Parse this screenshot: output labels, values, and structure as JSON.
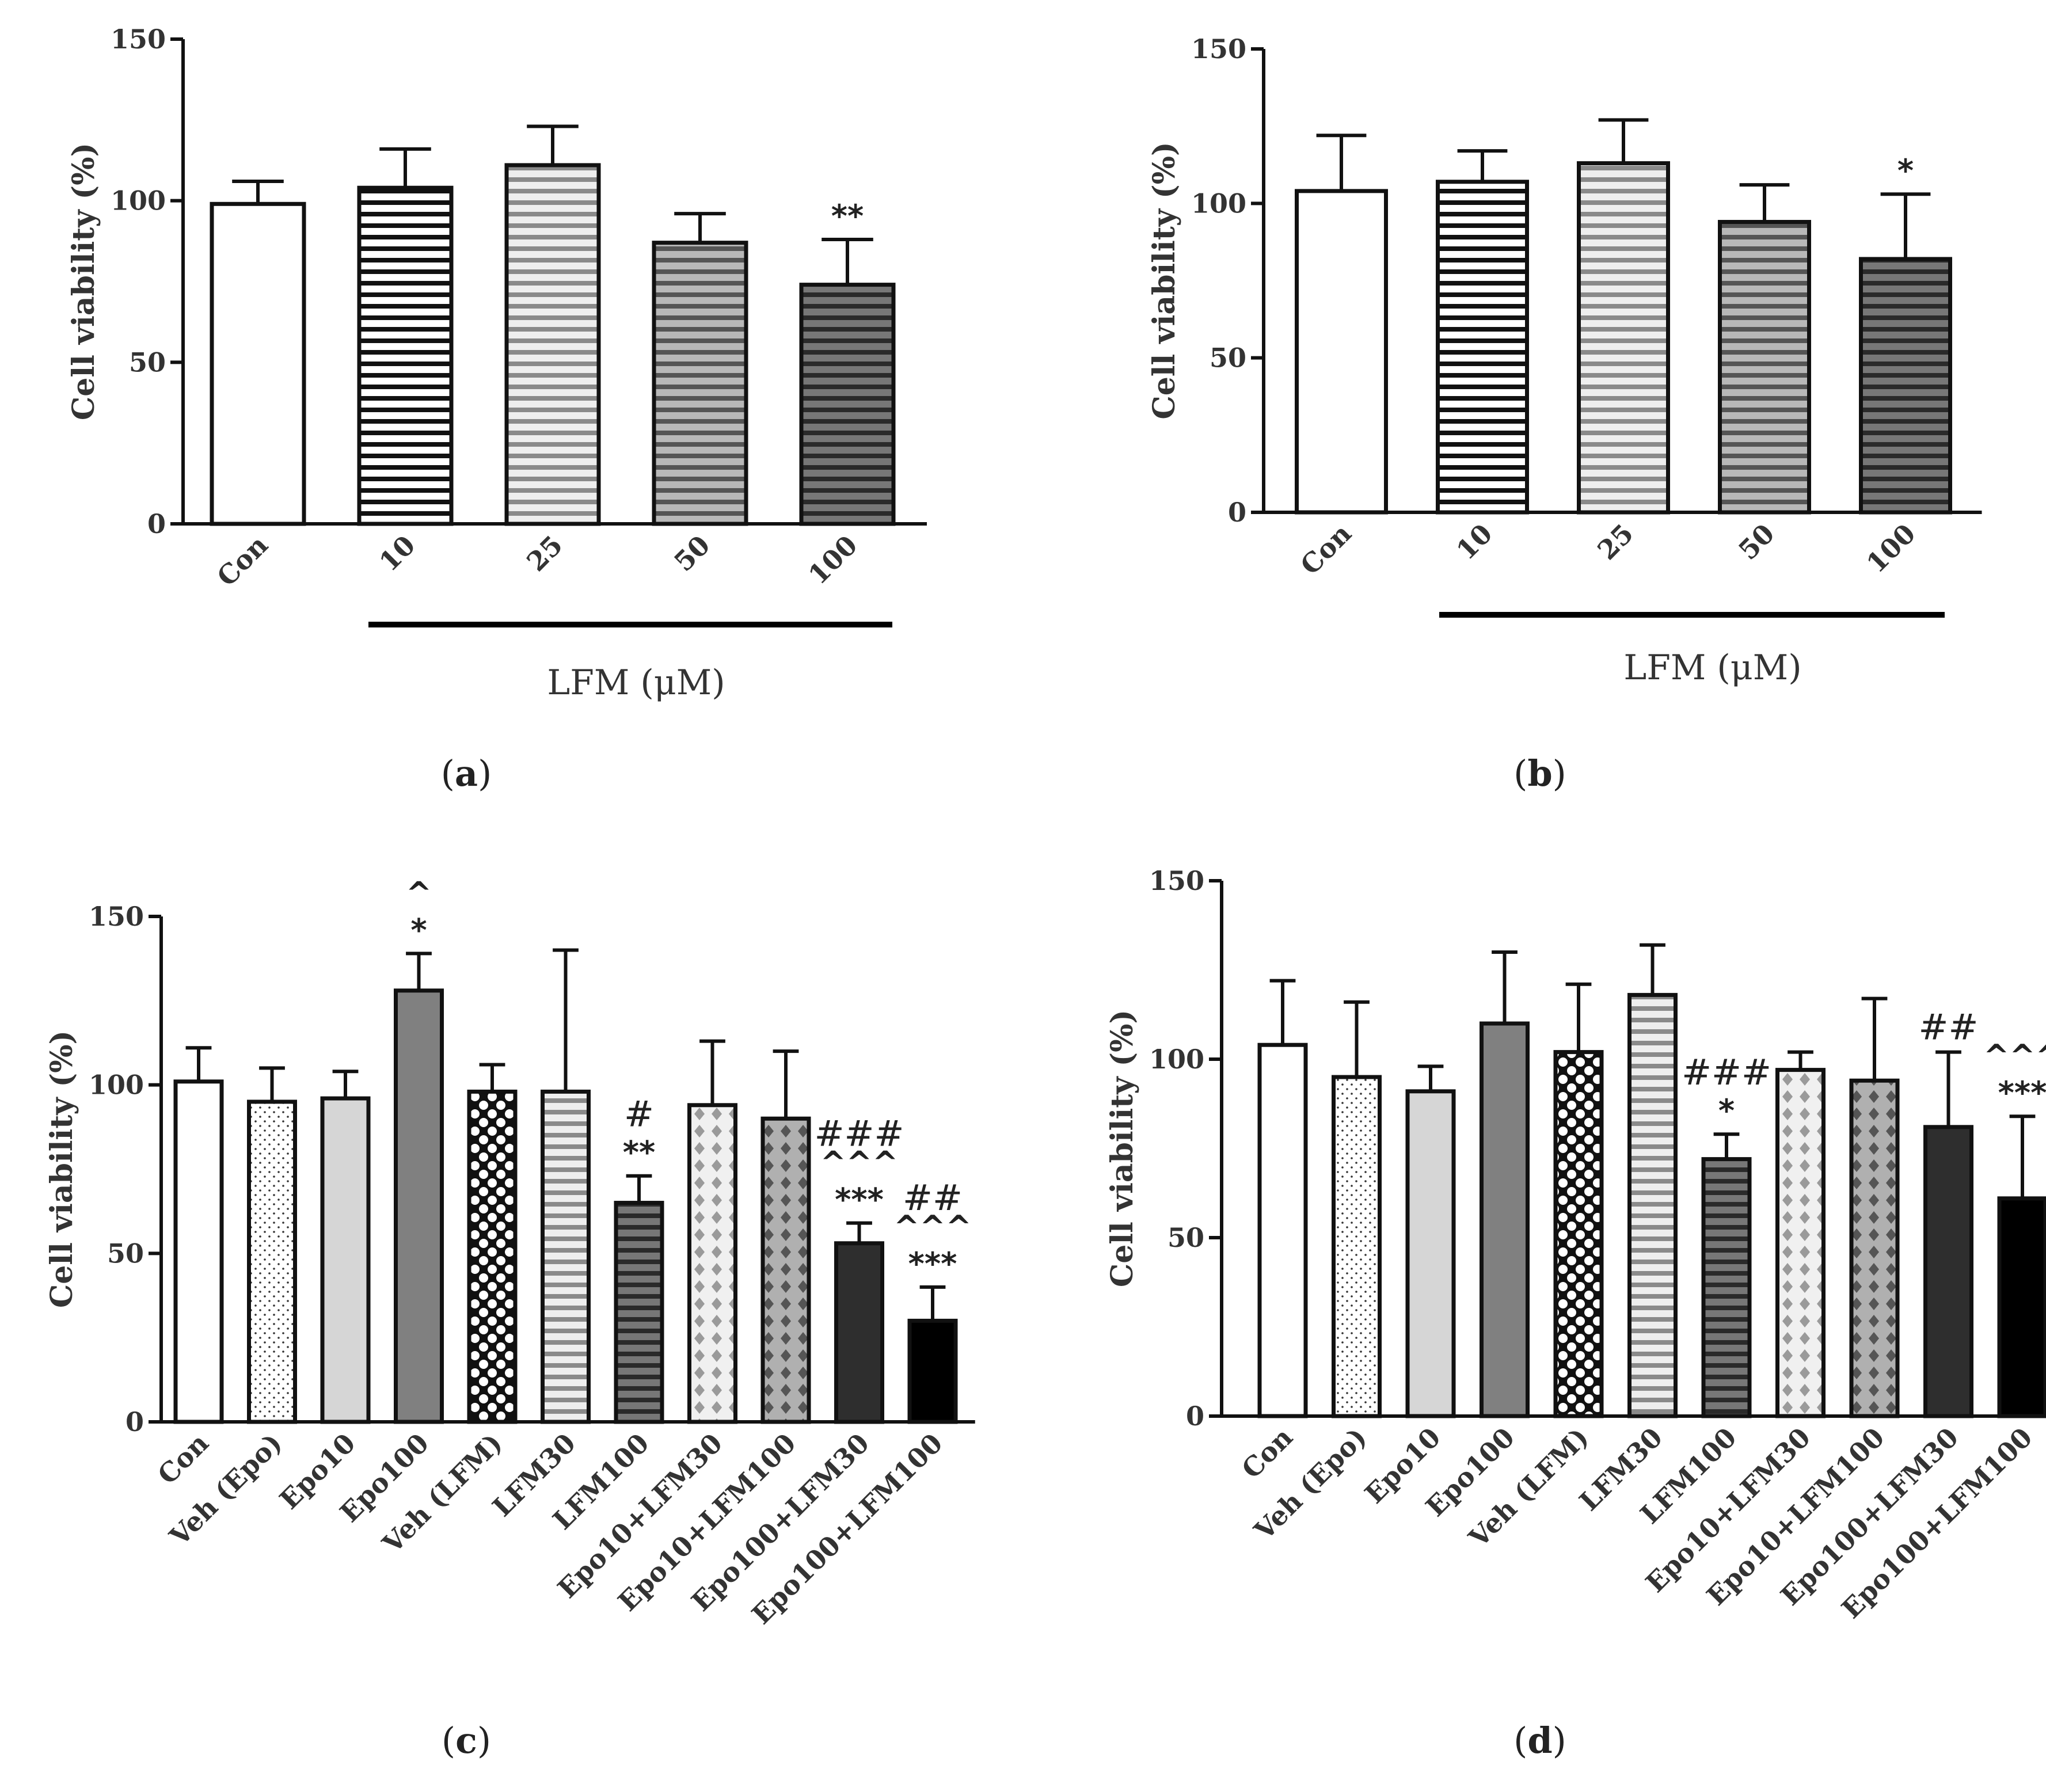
{
  "chart_data": [
    {
      "panel": "a",
      "type": "bar",
      "ylabel": "Cell viability (%)",
      "ylim": [
        0,
        150
      ],
      "yticks": [
        0,
        50,
        100,
        150
      ],
      "categories": [
        "Con",
        "10",
        "25",
        "50",
        "100"
      ],
      "values": [
        99,
        104,
        111,
        87,
        74
      ],
      "errors": [
        7,
        12,
        12,
        9,
        14
      ],
      "patterns": [
        "white",
        "stripe-white",
        "stripe-light",
        "stripe-mid",
        "stripe-dark"
      ],
      "annotations": [
        [],
        [],
        [],
        [],
        [
          "**"
        ]
      ],
      "group_label": "LFM (μM)",
      "group_start": 1,
      "panel_label": "a"
    },
    {
      "panel": "b",
      "type": "bar",
      "ylabel": "Cell viability (%)",
      "ylim": [
        0,
        150
      ],
      "yticks": [
        0,
        50,
        100,
        150
      ],
      "categories": [
        "Con",
        "10",
        "25",
        "50",
        "100"
      ],
      "values": [
        104,
        107,
        113,
        94,
        82
      ],
      "errors": [
        18,
        10,
        14,
        12,
        21
      ],
      "patterns": [
        "white",
        "stripe-white",
        "stripe-light",
        "stripe-mid",
        "stripe-dark"
      ],
      "annotations": [
        [],
        [],
        [],
        [],
        [
          "*"
        ]
      ],
      "group_label": "LFM (μM)",
      "group_start": 1,
      "panel_label": "b"
    },
    {
      "panel": "c",
      "type": "bar",
      "ylabel": "Cell viability (%)",
      "ylim": [
        0,
        150
      ],
      "yticks": [
        0,
        50,
        100,
        150
      ],
      "categories": [
        "Con",
        "Veh (Epo)",
        "Epo10",
        "Epo100",
        "Veh (LFM)",
        "LFM30",
        "LFM100",
        "Epo10+LFM30",
        "Epo10+LFM100",
        "Epo100+LFM30",
        "Epo100+LFM100"
      ],
      "values": [
        101,
        95,
        96,
        128,
        98,
        98,
        65,
        94,
        90,
        53,
        30
      ],
      "errors": [
        10,
        10,
        8,
        11,
        8,
        42,
        8,
        19,
        20,
        6,
        10
      ],
      "patterns": [
        "white",
        "dots",
        "light",
        "gray",
        "checker",
        "stripe-light",
        "stripe-dark",
        "diamond-light",
        "diamond-mid",
        "dark",
        "black"
      ],
      "annotations": [
        [],
        [],
        [],
        [
          "*",
          "^"
        ],
        [],
        [],
        [
          "**",
          "#"
        ],
        [],
        [],
        [
          "***",
          "^^^",
          "###"
        ],
        [
          "***",
          "^^^",
          "##"
        ]
      ],
      "panel_label": "c"
    },
    {
      "panel": "d",
      "type": "bar",
      "ylabel": "Cell viability (%)",
      "ylim": [
        0,
        150
      ],
      "yticks": [
        0,
        50,
        100,
        150
      ],
      "categories": [
        "Con",
        "Veh (Epo)",
        "Epo10",
        "Epo100",
        "Veh (LFM)",
        "LFM30",
        "LFM100",
        "Epo10+LFM30",
        "Epo10+LFM100",
        "Epo100+LFM30",
        "Epo100+LFM100"
      ],
      "values": [
        104,
        95,
        91,
        110,
        102,
        118,
        72,
        97,
        94,
        81,
        61
      ],
      "errors": [
        18,
        21,
        7,
        20,
        19,
        14,
        7,
        5,
        23,
        21,
        23
      ],
      "patterns": [
        "white",
        "dots",
        "light",
        "gray",
        "checker",
        "stripe-light",
        "stripe-dark",
        "diamond-light",
        "diamond-mid",
        "dark",
        "black"
      ],
      "annotations": [
        [],
        [],
        [],
        [],
        [],
        [],
        [
          "*",
          "###"
        ],
        [],
        [],
        [
          "##"
        ],
        [
          "***",
          "^^^"
        ]
      ],
      "panel_label": "d"
    }
  ]
}
